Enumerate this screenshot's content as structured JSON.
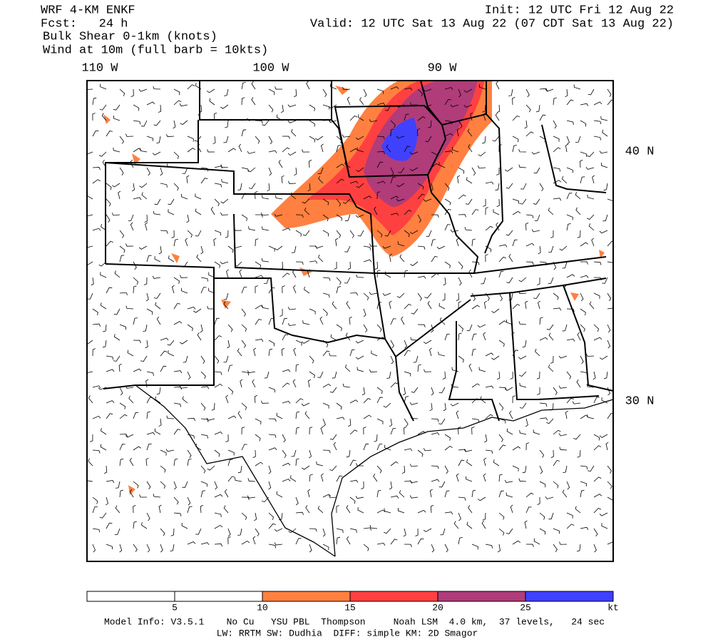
{
  "header": {
    "model": "WRF 4-KM ENKF",
    "forecast": "Fcst:   24 h",
    "field": "Bulk Shear 0-1km (knots)",
    "wind": "Wind at 10m (full barb = 10kts)",
    "init": "Init: 12 UTC Fri 12 Aug 22",
    "valid": "Valid: 12 UTC Sat 13 Aug 22 (07 CDT Sat 13 Aug 22)"
  },
  "map": {
    "lon_labels": [
      "110 W",
      "100 W",
      "90 W"
    ],
    "lat_labels": [
      "40 N",
      "30 N"
    ]
  },
  "legend": {
    "ticks": [
      5,
      10,
      15,
      20,
      25
    ],
    "unit": "kt",
    "colors": [
      "#ffffff",
      "#ffffff",
      "#ff8040",
      "#ff4040",
      "#b03c7a",
      "#4040ff"
    ]
  },
  "footer": {
    "line1": "Model Info: V3.5.1    No Cu   YSU PBL  Thompson     Noah LSM  4.0 km,  37 levels,   24 sec",
    "line2": "LW: RRTM SW: Dudhia  DIFF: simple KM: 2D Smagor"
  }
}
